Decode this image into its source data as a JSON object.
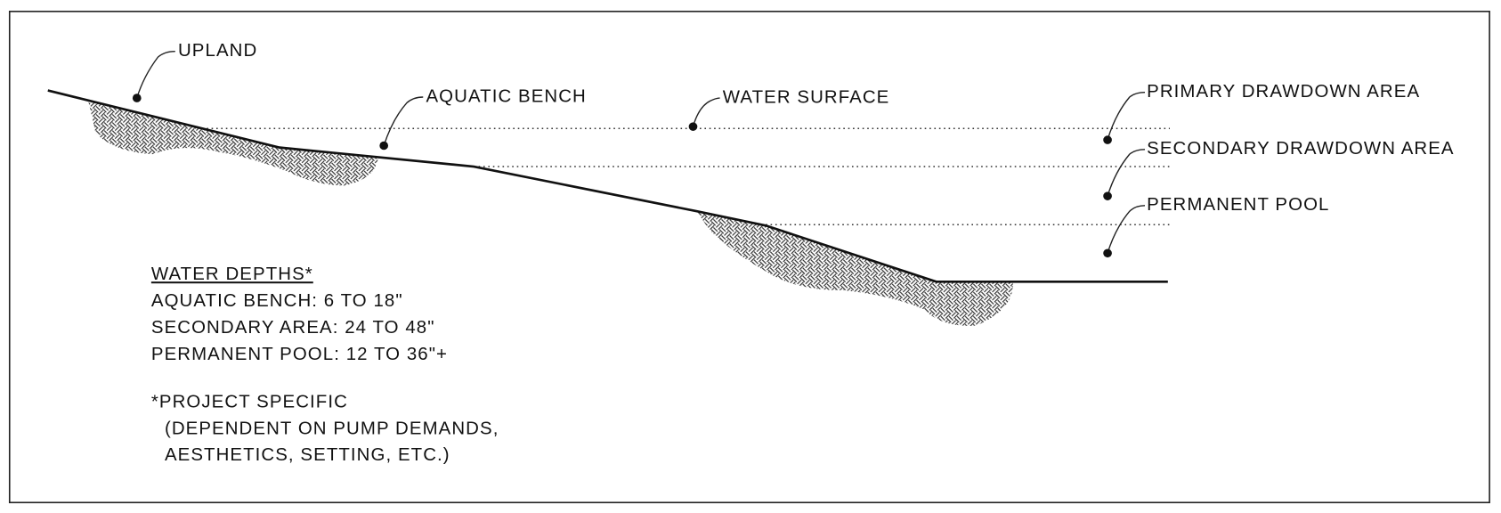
{
  "labels": [
    "UPLAND",
    "AQUATIC BENCH",
    "WATER SURFACE",
    "PRIMARY DRAWDOWN AREA",
    "SECONDARY DRAWDOWN AREA",
    "PERMANENT POOL"
  ],
  "notes": {
    "heading": "WATER DEPTHS*",
    "lines": [
      "AQUATIC BENCH: 6 TO 18\"",
      "SECONDARY AREA: 24 TO 48\"",
      "PERMANENT POOL: 12 TO 36\"+"
    ],
    "footnote": [
      "*PROJECT SPECIFIC",
      "(DEPENDENT ON PUMP DEMANDS,",
      "AESTHETICS, SETTING, ETC.)"
    ]
  }
}
